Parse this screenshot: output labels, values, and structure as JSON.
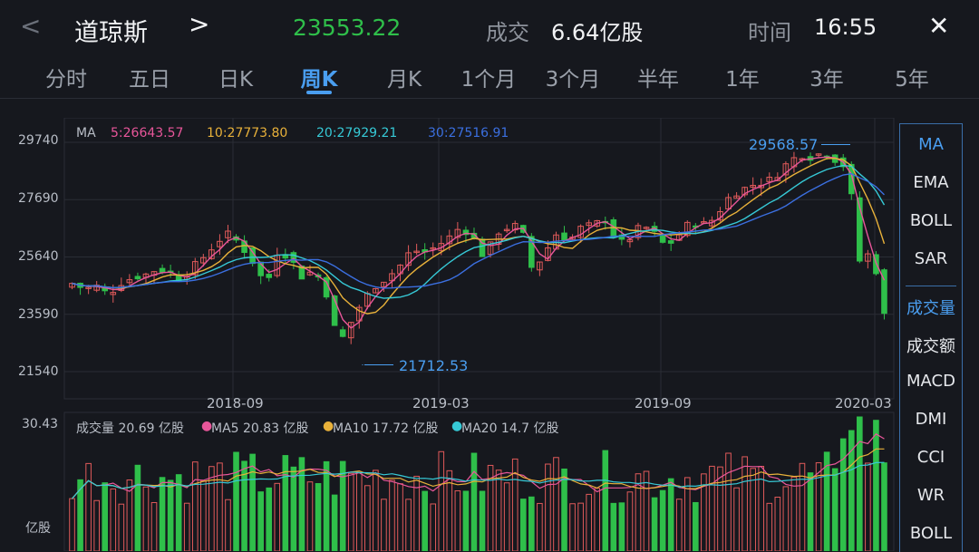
{
  "header": {
    "back_glyph": "<",
    "title": "道琼斯",
    "next_glyph": ">",
    "price": "23553.22",
    "volume_label": "成交",
    "volume_value": "6.64亿股",
    "time_label": "时间",
    "time_value": "16:55",
    "close_glyph": "✕",
    "colors": {
      "price": "#2fbf4a",
      "accent": "#4a9ef0"
    }
  },
  "tabs": [
    "分时",
    "五日",
    "日K",
    "周K",
    "月K",
    "1个月",
    "3个月",
    "半年",
    "1年",
    "3年",
    "5年"
  ],
  "active_tab": "周K",
  "main_chart": {
    "ma": {
      "label": "MA",
      "ma5": "5:26643.57",
      "ma10": "10:27773.80",
      "ma20": "20:27929.21",
      "ma30": "30:27516.91",
      "colors": {
        "ma5": "#e8569a",
        "ma10": "#e8b13a",
        "ma20": "#36c9d6",
        "ma30": "#3b6fe0"
      }
    },
    "y_ticks": [
      "29740",
      "27690",
      "25640",
      "23590",
      "21540"
    ],
    "x_ticks": [
      "2018-09",
      "2019-03",
      "2019-09",
      "2020-03"
    ],
    "high_label": "29568.57",
    "low_label": "21712.53"
  },
  "volume_chart": {
    "max_label": "30.43",
    "unit_label": "亿股",
    "vol": "成交量 20.69 亿股",
    "ma5": "MA5 20.83 亿股",
    "ma10": "MA10 17.72 亿股",
    "ma20": "MA20 14.7 亿股"
  },
  "side_menu": {
    "indicators": [
      "MA",
      "EMA",
      "BOLL",
      "SAR"
    ],
    "sub_indicators": [
      "成交量",
      "成交额",
      "MACD",
      "DMI",
      "CCI",
      "WR",
      "BOLL"
    ],
    "active_indicator": "MA",
    "active_sub": "成交量"
  },
  "chart_data": {
    "type": "candlestick",
    "title": "道琼斯 周K",
    "x_ticks": [
      "2018-09",
      "2019-03",
      "2019-09",
      "2020-03"
    ],
    "ylim": [
      21540,
      29740
    ],
    "weekly_close_approx": [
      24700,
      24500,
      24600,
      24300,
      24700,
      24900,
      25000,
      25200,
      25100,
      24800,
      25300,
      25700,
      26200,
      26500,
      26000,
      25400,
      24600,
      25900,
      25600,
      24900,
      25200,
      24300,
      22500,
      23300,
      24100,
      24600,
      24900,
      25300,
      25900,
      25800,
      26000,
      26300,
      26700,
      26400,
      25600,
      26500,
      26700,
      26800,
      25100,
      25800,
      26500,
      26200,
      26700,
      26800,
      27000,
      26100,
      26300,
      26800,
      26500,
      26000,
      26400,
      26900,
      26800,
      27000,
      27700,
      28000,
      28200,
      28300,
      28500,
      29000,
      29300,
      29200,
      29400,
      29100,
      28800,
      25400,
      25900,
      23553
    ],
    "annotations": {
      "high": 29568.57,
      "low": 21712.53
    },
    "volume": {
      "latest": 20.69,
      "ma5": 20.83,
      "ma10": 17.72,
      "ma20": 14.7,
      "max": 30.43,
      "unit": "亿股"
    }
  }
}
